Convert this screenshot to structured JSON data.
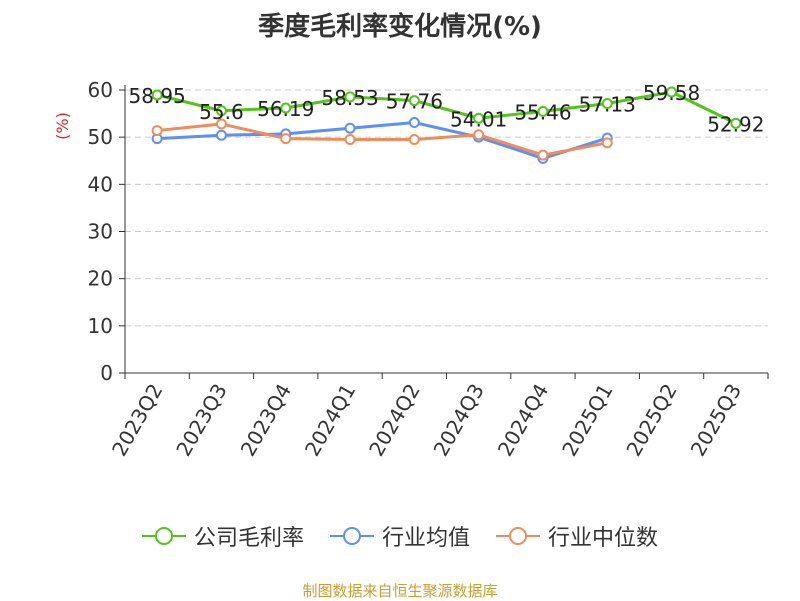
{
  "chart_data": {
    "type": "line",
    "title": "季度毛利率变化情况(%)",
    "ylabel": "(%)",
    "xlabel": "",
    "ylim": [
      0,
      60
    ],
    "yticks": [
      0,
      10,
      20,
      30,
      40,
      50,
      60
    ],
    "grid": true,
    "legend_position": "bottom",
    "categories": [
      "2023Q2",
      "2023Q3",
      "2023Q4",
      "2024Q1",
      "2024Q2",
      "2024Q3",
      "2024Q4",
      "2025Q1",
      "2025Q2",
      "2025Q3"
    ],
    "series": [
      {
        "name": "公司毛利率",
        "color": "#52c41a",
        "labeled": true,
        "values": [
          58.95,
          55.6,
          56.19,
          58.53,
          57.76,
          54.01,
          55.46,
          57.13,
          59.58,
          52.92
        ]
      },
      {
        "name": "行业均值",
        "color": "#5b8ff9",
        "labeled": false,
        "values": [
          49.7,
          50.4,
          50.7,
          51.9,
          53.1,
          50.0,
          45.5,
          49.8,
          null,
          null
        ]
      },
      {
        "name": "行业中位数",
        "color": "#f08c5a",
        "labeled": false,
        "values": [
          51.4,
          52.8,
          49.7,
          49.5,
          49.5,
          50.5,
          46.2,
          48.8,
          null,
          null
        ]
      }
    ]
  },
  "footer": {
    "source": "制图数据来自恒生聚源数据库"
  }
}
